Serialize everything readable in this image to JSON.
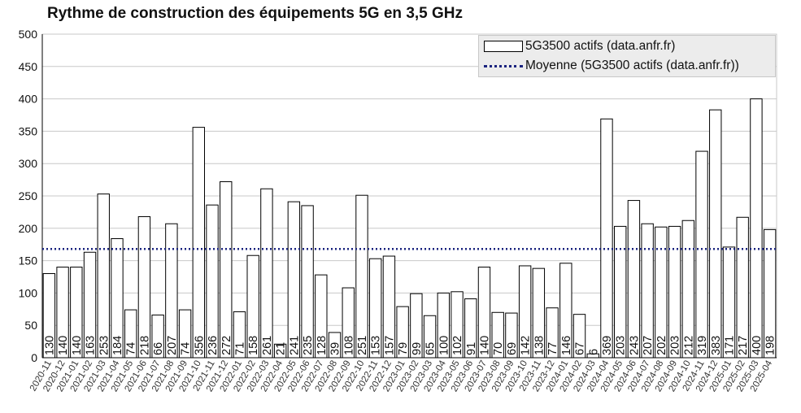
{
  "title": "Rythme de construction des équipements 5G en 3,5 GHz",
  "legend": {
    "bars": "5G3500 actifs (data.anfr.fr)",
    "mean": "Moyenne (5G3500 actifs (data.anfr.fr))"
  },
  "colors": {
    "bar_fill": "#ffffff",
    "bar_stroke": "#000000",
    "mean_line": "#1a237e",
    "grid": "#c8c8c8"
  },
  "chart_data": {
    "type": "bar",
    "title": "Rythme de construction des équipements 5G en 3,5 GHz",
    "categories": [
      "2020-11",
      "2020-12",
      "2021-01",
      "2021-02",
      "2021-03",
      "2021-04",
      "2021-05",
      "2021-06",
      "2021-07",
      "2021-08",
      "2021-09",
      "2021-10",
      "2021-11",
      "2021-12",
      "2022-01",
      "2022-02",
      "2022-03",
      "2022-04",
      "2022-05",
      "2022-06",
      "2022-07",
      "2022-08",
      "2022-09",
      "2022-10",
      "2022-11",
      "2022-12",
      "2023-01",
      "2023-02",
      "2023-03",
      "2023-04",
      "2023-05",
      "2023-06",
      "2023-07",
      "2023-08",
      "2023-09",
      "2023-10",
      "2023-11",
      "2023-12",
      "2024-01",
      "2024-02",
      "2024-03",
      "2024-04",
      "2024-05",
      "2024-06",
      "2024-07",
      "2024-08",
      "2024-09",
      "2024-10",
      "2024-11",
      "2024-12",
      "2025-01",
      "2025-02",
      "2025-03",
      "2025-04"
    ],
    "series": [
      {
        "name": "5G3500 actifs (data.anfr.fr)",
        "values": [
          130,
          140,
          140,
          163,
          253,
          184,
          74,
          218,
          66,
          207,
          74,
          356,
          236,
          272,
          71,
          158,
          261,
          21,
          241,
          235,
          128,
          39,
          108,
          251,
          153,
          157,
          79,
          99,
          65,
          100,
          102,
          91,
          140,
          70,
          69,
          142,
          138,
          77,
          146,
          67,
          6,
          369,
          203,
          243,
          207,
          202,
          203,
          212,
          319,
          383,
          171,
          217,
          400,
          198
        ]
      }
    ],
    "mean": 168,
    "ylim": [
      0,
      500
    ],
    "yticks": [
      0,
      50,
      100,
      150,
      200,
      250,
      300,
      350,
      400,
      450,
      500
    ],
    "grid": true,
    "legend_position": "top-right",
    "data_labels": true
  }
}
